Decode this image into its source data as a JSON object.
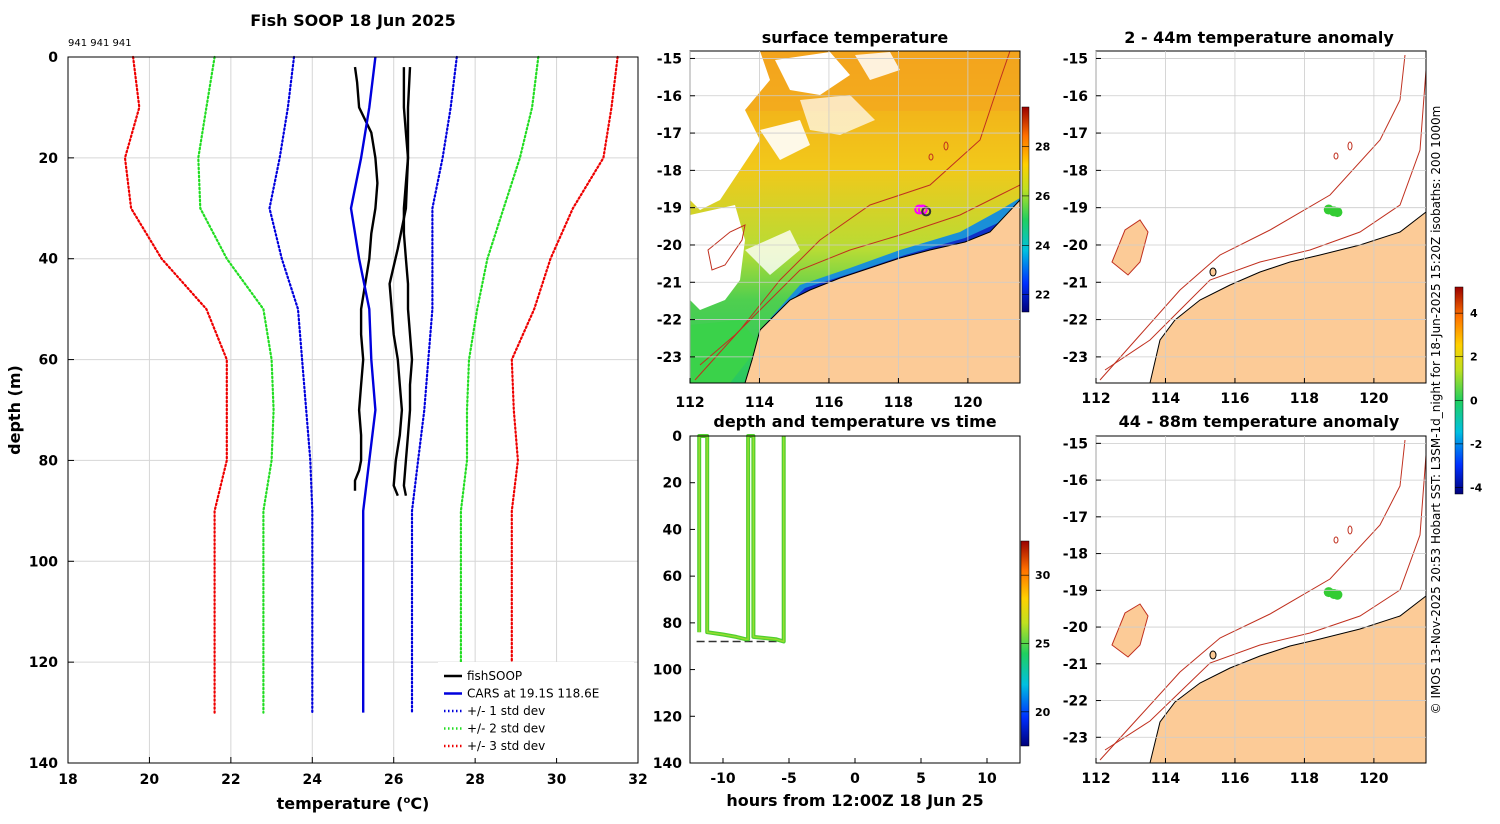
{
  "chart_data": [
    {
      "type": "line",
      "title": "Fish SOOP 18 Jun 2025",
      "id_label": "941 941 941",
      "xlabel": "temperature (°C)",
      "xlabel_main": "temperature (",
      "xlabel_deg": "o",
      "xlabel_unit": "C)",
      "ylabel": "depth (m)",
      "xlim": [
        18,
        32
      ],
      "ylim": [
        0,
        140
      ],
      "xticks": [
        "18",
        "20",
        "22",
        "24",
        "26",
        "28",
        "30",
        "32"
      ],
      "yticks": [
        "0",
        "20",
        "40",
        "60",
        "80",
        "100",
        "120",
        "140"
      ],
      "legend_position": "bottom-right",
      "series": [
        {
          "name": "fishSOOP",
          "color": "#000000",
          "style": "solid",
          "depth": [
            2,
            5,
            10,
            15,
            20,
            25,
            30,
            35,
            40,
            45,
            50,
            55,
            60,
            65,
            70,
            75,
            80,
            82,
            84,
            86
          ],
          "values": [
            25.05,
            25.1,
            25.15,
            25.45,
            25.55,
            25.6,
            25.55,
            25.45,
            25.4,
            25.3,
            25.2,
            25.2,
            25.25,
            25.2,
            25.15,
            25.2,
            25.2,
            25.15,
            25.05,
            25.05
          ]
        },
        {
          "name": "fishSOOP",
          "color": "#000000",
          "style": "solid",
          "depth": [
            2,
            5,
            10,
            15,
            20,
            25,
            30,
            35,
            40,
            45,
            50,
            55,
            60,
            65,
            70,
            75,
            80,
            85,
            87
          ],
          "values": [
            26.25,
            26.25,
            26.25,
            26.3,
            26.35,
            26.3,
            26.25,
            26.25,
            26.3,
            26.35,
            26.35,
            26.4,
            26.45,
            26.4,
            26.4,
            26.35,
            26.3,
            26.25,
            26.3
          ]
        },
        {
          "name": "fishSOOP",
          "color": "#000000",
          "style": "solid",
          "depth": [
            2,
            10,
            20,
            30,
            38,
            45,
            50,
            55,
            60,
            65,
            70,
            75,
            80,
            85,
            87
          ],
          "values": [
            26.4,
            26.35,
            26.35,
            26.3,
            26.1,
            25.9,
            25.95,
            26.0,
            26.1,
            26.15,
            26.2,
            26.15,
            26.05,
            26.0,
            26.1
          ]
        },
        {
          "name": "CARS at 19.1S 118.6E",
          "color": "#0000dd",
          "style": "solid",
          "depth": [
            0,
            10,
            20,
            30,
            40,
            50,
            60,
            70,
            80,
            90,
            100,
            110,
            120,
            130
          ],
          "values": [
            25.55,
            25.4,
            25.2,
            24.95,
            25.15,
            25.4,
            25.45,
            25.55,
            25.4,
            25.25,
            25.25,
            25.25,
            25.25,
            25.25
          ]
        },
        {
          "name": "+/- 1 std dev",
          "color": "#0000dd",
          "style": "dotted",
          "depth": [
            0,
            10,
            20,
            30,
            40,
            50,
            60,
            70,
            80,
            90,
            100,
            110,
            120,
            130
          ],
          "values": [
            23.55,
            23.4,
            23.2,
            22.95,
            23.25,
            23.65,
            23.75,
            23.85,
            23.95,
            24.0,
            24.0,
            24.0,
            24.0,
            24.0
          ]
        },
        {
          "name": "+/- 1 std dev",
          "color": "#0000dd",
          "style": "dotted",
          "depth": [
            0,
            10,
            20,
            30,
            40,
            50,
            60,
            70,
            80,
            90,
            100,
            110,
            120,
            130
          ],
          "values": [
            27.55,
            27.4,
            27.2,
            26.95,
            26.95,
            26.95,
            26.85,
            26.75,
            26.6,
            26.45,
            26.45,
            26.45,
            26.45,
            26.45
          ]
        },
        {
          "name": "+/- 2 std dev",
          "color": "#22dd22",
          "style": "dotted",
          "depth": [
            0,
            10,
            20,
            30,
            40,
            50,
            60,
            70,
            80,
            90,
            100,
            110,
            120,
            130
          ],
          "values": [
            21.6,
            21.4,
            21.2,
            21.25,
            21.9,
            22.8,
            23.0,
            23.05,
            23.0,
            22.8,
            22.8,
            22.8,
            22.8,
            22.8
          ]
        },
        {
          "name": "+/- 2 std dev",
          "color": "#22dd22",
          "style": "dotted",
          "depth": [
            0,
            10,
            20,
            30,
            40,
            50,
            60,
            70,
            80,
            90,
            100,
            110,
            120,
            130
          ],
          "values": [
            29.55,
            29.4,
            29.1,
            28.7,
            28.3,
            28.05,
            27.85,
            27.8,
            27.8,
            27.65,
            27.65,
            27.65,
            27.65,
            27.65
          ]
        },
        {
          "name": "+/- 3 std dev",
          "color": "#ee0000",
          "style": "dotted",
          "depth": [
            0,
            10,
            20,
            30,
            40,
            50,
            60,
            70,
            80,
            90,
            100,
            110,
            120,
            130
          ],
          "values": [
            19.6,
            19.75,
            19.4,
            19.55,
            20.3,
            21.4,
            21.9,
            21.9,
            21.9,
            21.6,
            21.6,
            21.6,
            21.6,
            21.6
          ]
        },
        {
          "name": "+/- 3 std dev",
          "color": "#ee0000",
          "style": "dotted",
          "depth": [
            0,
            10,
            20,
            30,
            40,
            50,
            60,
            70,
            80,
            90,
            100,
            110,
            120,
            130
          ],
          "values": [
            31.5,
            31.35,
            31.15,
            30.4,
            29.85,
            29.45,
            28.9,
            28.95,
            29.05,
            28.9,
            28.9,
            28.9,
            28.9,
            28.9
          ]
        }
      ],
      "legend": [
        {
          "label": "fishSOOP",
          "color": "#000000",
          "style": "solid"
        },
        {
          "label": "CARS at 19.1S 118.6E",
          "color": "#0000dd",
          "style": "solid"
        },
        {
          "label": "+/- 1 std dev",
          "color": "#0000dd",
          "style": "dotted"
        },
        {
          "label": "+/- 2 std dev",
          "color": "#22dd22",
          "style": "dotted"
        },
        {
          "label": "+/- 3 std dev",
          "color": "#ee0000",
          "style": "dotted"
        }
      ]
    },
    {
      "type": "heatmap",
      "title": "surface temperature",
      "xlim": [
        112,
        121.5
      ],
      "ylim": [
        -23.7,
        -14.8
      ],
      "xticks": [
        "112",
        "114",
        "116",
        "118",
        "120"
      ],
      "yticks": [
        "-15",
        "-16",
        "-17",
        "-18",
        "-19",
        "-20",
        "-21",
        "-22",
        "-23"
      ],
      "colorbar": {
        "min": 21.3,
        "max": 29.6,
        "ticks": [
          "22",
          "24",
          "26",
          "28"
        ]
      },
      "track_points": [
        [
          118.6,
          -19.05
        ],
        [
          118.7,
          -19.05
        ],
        [
          118.8,
          -19.1
        ]
      ]
    },
    {
      "type": "scatter",
      "title": "depth and temperature vs time",
      "xlabel": "hours from 12:00Z 18 Jun 25",
      "ylabel": "",
      "xlim": [
        -12.5,
        12.5
      ],
      "ylim": [
        0,
        140
      ],
      "xticks": [
        "-10",
        "-5",
        "0",
        "5",
        "10"
      ],
      "yticks": [
        "0",
        "20",
        "40",
        "60",
        "80",
        "100",
        "120",
        "140"
      ],
      "bottom_depth": 88,
      "profile_segments": [
        {
          "x": [
            -11.8,
            -11.8,
            -11.5,
            -11.2,
            -11.2,
            -10,
            -9,
            -8.3,
            -8.1,
            -8.1,
            -8.0,
            -7.7,
            -7.7,
            -6,
            -5.4,
            -5.4
          ],
          "y": [
            84,
            0,
            0,
            0,
            84,
            85,
            86,
            87,
            87,
            0,
            0,
            0,
            86,
            87,
            88,
            0
          ]
        }
      ],
      "colorbar": {
        "min": 17.5,
        "max": 32.5,
        "ticks": [
          "20",
          "25",
          "30"
        ]
      }
    },
    {
      "type": "heatmap",
      "title": "2 - 44m temperature anomaly",
      "xlim": [
        112,
        121.5
      ],
      "ylim": [
        -23.7,
        -14.8
      ],
      "xticks": [
        "112",
        "114",
        "116",
        "118",
        "120"
      ],
      "yticks": [
        "-15",
        "-16",
        "-17",
        "-18",
        "-19",
        "-20",
        "-21",
        "-22",
        "-23"
      ],
      "anomaly_points": [
        [
          118.7,
          -19.05
        ],
        [
          118.85,
          -19.1
        ],
        [
          118.95,
          -19.12
        ]
      ],
      "colorbar": {
        "min": -4.3,
        "max": 5.2,
        "ticks": [
          "4",
          "2",
          "0",
          "-2",
          "-4"
        ]
      }
    },
    {
      "type": "heatmap",
      "title": "44 - 88m temperature anomaly",
      "xlim": [
        112,
        121.5
      ],
      "ylim": [
        -23.7,
        -14.8
      ],
      "xticks": [
        "112",
        "114",
        "116",
        "118",
        "120"
      ],
      "yticks": [
        "-15",
        "-16",
        "-17",
        "-18",
        "-19",
        "-20",
        "-21",
        "-22",
        "-23"
      ],
      "anomaly_points": [
        [
          118.7,
          -19.05
        ],
        [
          118.85,
          -19.1
        ],
        [
          118.95,
          -19.12
        ]
      ]
    }
  ],
  "credit": "© IMOS 13-Nov-2025 20:53 Hobart SST: L3SM-1d_night for 18-Jun-2025 15:20Z isobaths: 200  1000m",
  "colors": {
    "land": "#fccb97",
    "isobath": "#c0301f",
    "axis": "#000000"
  }
}
